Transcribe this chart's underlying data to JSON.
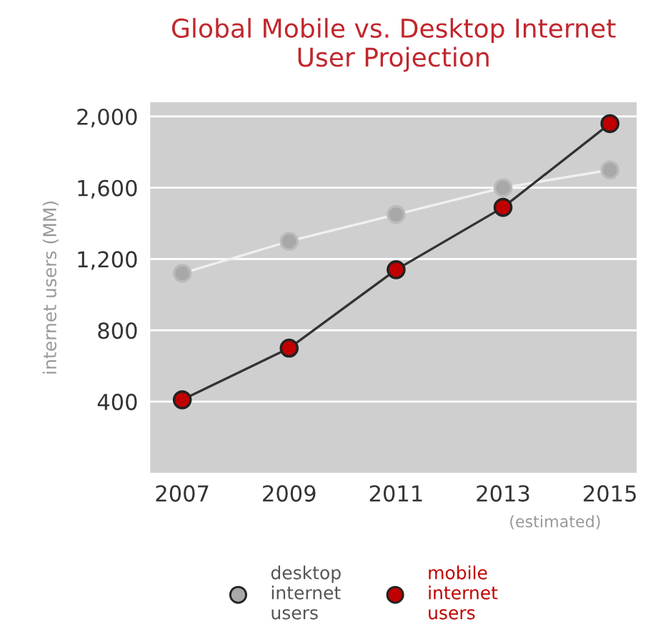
{
  "chart_data": {
    "type": "line",
    "title": "Global Mobile vs. Desktop Internet\nUser Projection",
    "ylabel": "internet users (MM)",
    "x": [
      2007,
      2009,
      2011,
      2013,
      2015
    ],
    "series": [
      {
        "name": "desktop\ninternet\nusers",
        "color": "#a8a8a8",
        "values": [
          1120,
          1300,
          1450,
          1600,
          1700
        ]
      },
      {
        "name": "mobile\ninternet\nusers",
        "color": "#c00000",
        "values": [
          410,
          700,
          1140,
          1490,
          1960
        ]
      }
    ],
    "xlim": [
      2006.4,
      2015.5
    ],
    "xticks": [
      2007,
      2009,
      2011,
      2013,
      2015
    ],
    "ylim": [
      0,
      2080
    ],
    "yticks": [
      {
        "value": 400,
        "label": "400"
      },
      {
        "value": 800,
        "label": "800"
      },
      {
        "value": 1200,
        "label": "1,200"
      },
      {
        "value": 1600,
        "label": "1,600"
      },
      {
        "value": 2000,
        "label": "2,000"
      }
    ],
    "annotations": [
      "(estimated)"
    ],
    "grid": "y",
    "legend": "bottom",
    "marker": "circle",
    "line_style": "solid"
  }
}
